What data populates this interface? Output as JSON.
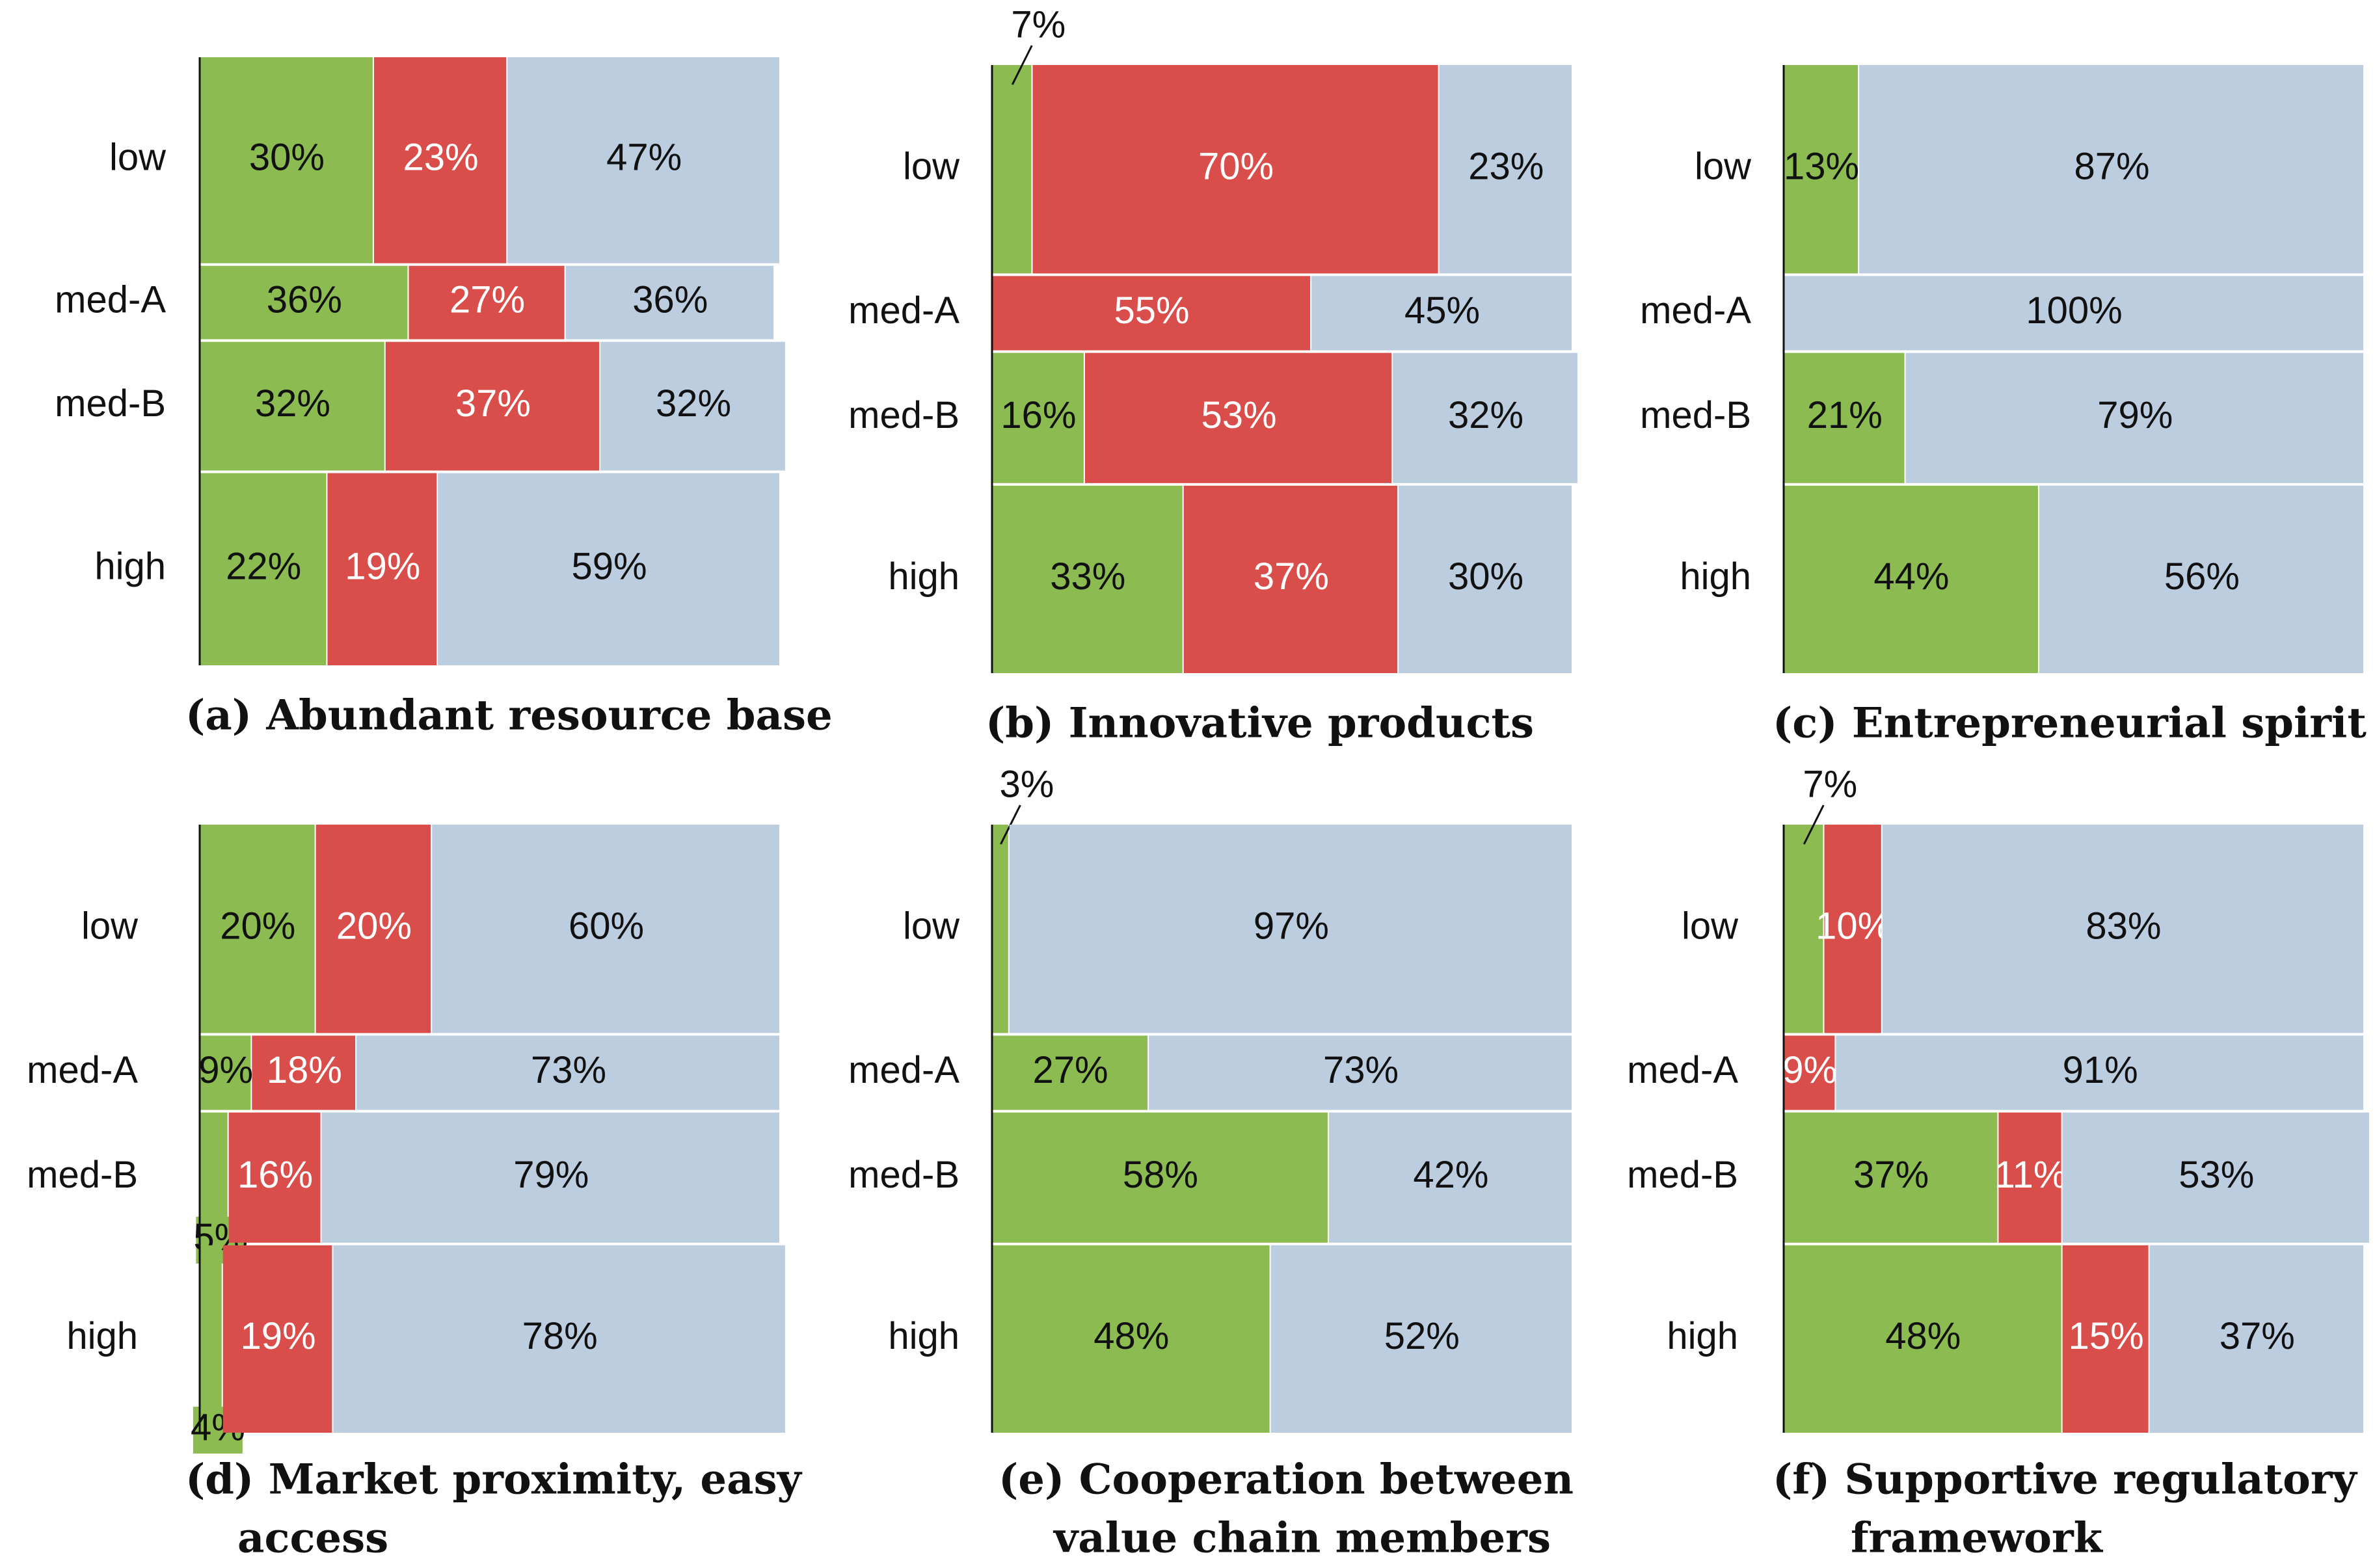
{
  "figure": {
    "colors": {
      "green": "#8cbb51",
      "red": "#d94e4b",
      "blue": "#bccde0",
      "dark_text": "#111111",
      "light_text": "#ffffff"
    },
    "rows": [
      "low",
      "med-A",
      "med-B",
      "high"
    ]
  },
  "chart_data": [
    {
      "type": "bar",
      "subtype": "mosaic",
      "title": "(a) Abundant resource base",
      "title_lines": [
        "(a) Abundant resource base"
      ],
      "categories": [
        "low",
        "med-A",
        "med-B",
        "high"
      ],
      "row_weights": [
        30,
        11,
        19,
        28
      ],
      "series": [
        {
          "name": "green",
          "values": [
            30,
            36,
            32,
            22
          ],
          "labels": [
            "30%",
            "36%",
            "32%",
            "22%"
          ]
        },
        {
          "name": "red",
          "values": [
            23,
            27,
            37,
            19
          ],
          "labels": [
            "23%",
            "27%",
            "37%",
            "19%"
          ]
        },
        {
          "name": "blue",
          "values": [
            47,
            36,
            32,
            59
          ],
          "labels": [
            "47%",
            "36%",
            "32%",
            "59%"
          ]
        }
      ]
    },
    {
      "type": "bar",
      "subtype": "mosaic",
      "title": "(b) Innovative products",
      "title_lines": [
        "(b) Innovative products"
      ],
      "categories": [
        "low",
        "med-A",
        "med-B",
        "high"
      ],
      "row_weights": [
        30,
        11,
        19,
        27
      ],
      "series": [
        {
          "name": "green",
          "values": [
            7,
            0,
            16,
            33
          ],
          "labels": [
            "7%",
            "",
            "16%",
            "33%"
          ]
        },
        {
          "name": "red",
          "values": [
            70,
            55,
            53,
            37
          ],
          "labels": [
            "70%",
            "55%",
            "53%",
            "37%"
          ]
        },
        {
          "name": "blue",
          "values": [
            23,
            45,
            32,
            30
          ],
          "labels": [
            "23%",
            "45%",
            "32%",
            "30%"
          ]
        }
      ]
    },
    {
      "type": "bar",
      "subtype": "mosaic",
      "title": "(c) Entrepreneurial spirit",
      "title_lines": [
        "(c) Entrepreneurial spirit"
      ],
      "categories": [
        "low",
        "med-A",
        "med-B",
        "high"
      ],
      "row_weights": [
        30,
        11,
        19,
        27
      ],
      "series": [
        {
          "name": "green",
          "values": [
            13,
            0,
            21,
            44
          ],
          "labels": [
            "13%",
            "",
            "21%",
            "44%"
          ]
        },
        {
          "name": "red",
          "values": [
            0,
            0,
            0,
            0
          ],
          "labels": [
            "",
            "",
            "",
            ""
          ]
        },
        {
          "name": "blue",
          "values": [
            87,
            100,
            79,
            56
          ],
          "labels": [
            "87%",
            "100%",
            "79%",
            "56%"
          ]
        }
      ]
    },
    {
      "type": "bar",
      "subtype": "mosaic",
      "title": "(d) Market proximity, easy access",
      "title_lines": [
        "(d) Market proximity, easy",
        "access"
      ],
      "categories": [
        "low",
        "med-A",
        "med-B",
        "high"
      ],
      "row_weights": [
        30,
        11,
        19,
        27
      ],
      "series": [
        {
          "name": "green",
          "values": [
            20,
            9,
            5,
            4
          ],
          "labels": [
            "20%",
            "9%",
            "5%",
            "4%"
          ]
        },
        {
          "name": "red",
          "values": [
            20,
            18,
            16,
            19
          ],
          "labels": [
            "20%",
            "18%",
            "16%",
            "19%"
          ]
        },
        {
          "name": "blue",
          "values": [
            60,
            73,
            79,
            78
          ],
          "labels": [
            "60%",
            "73%",
            "79%",
            "78%"
          ]
        }
      ]
    },
    {
      "type": "bar",
      "subtype": "mosaic",
      "title": "(e) Cooperation between value chain members",
      "title_lines": [
        "(e) Cooperation between",
        "value chain members"
      ],
      "categories": [
        "low",
        "med-A",
        "med-B",
        "high"
      ],
      "row_weights": [
        30,
        11,
        19,
        27
      ],
      "series": [
        {
          "name": "green",
          "values": [
            3,
            27,
            58,
            48
          ],
          "labels": [
            "3%",
            "27%",
            "58%",
            "48%"
          ]
        },
        {
          "name": "red",
          "values": [
            0,
            0,
            0,
            0
          ],
          "labels": [
            "",
            "",
            "",
            ""
          ]
        },
        {
          "name": "blue",
          "values": [
            97,
            73,
            42,
            52
          ],
          "labels": [
            "97%",
            "73%",
            "42%",
            "52%"
          ]
        }
      ]
    },
    {
      "type": "bar",
      "subtype": "mosaic",
      "title": "(f) Supportive regulatory framework",
      "title_lines": [
        "(f) Supportive regulatory",
        "framework"
      ],
      "categories": [
        "low",
        "med-A",
        "med-B",
        "high"
      ],
      "row_weights": [
        30,
        11,
        19,
        27
      ],
      "series": [
        {
          "name": "green",
          "values": [
            7,
            0,
            37,
            48
          ],
          "labels": [
            "7%",
            "",
            "37%",
            "48%"
          ]
        },
        {
          "name": "red",
          "values": [
            10,
            9,
            11,
            15
          ],
          "labels": [
            "10%",
            "9%",
            "11%",
            "15%"
          ]
        },
        {
          "name": "blue",
          "values": [
            83,
            91,
            53,
            37
          ],
          "labels": [
            "83%",
            "91%",
            "53%",
            "37%"
          ]
        }
      ]
    }
  ]
}
